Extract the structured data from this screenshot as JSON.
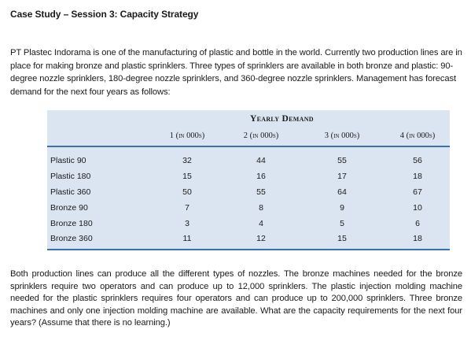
{
  "title": "Case Study – Session 3: Capacity Strategy",
  "intro": "PT Plastec Indorama is one of the manufacturing of plastic and bottle in the world. Currently two production lines are in place for making bronze and plastic sprinklers. Three types of sprinklers are available in both bronze and plastic: 90-degree nozzle sprinklers, 180-degree nozzle sprinklers, and 360-degree nozzle sprinklers. Management has forecast demand for the next four years as follows:",
  "table": {
    "span_header": "Yearly Demand",
    "columns": [
      "1 (in 000s)",
      "2 (in 000s)",
      "3 (in 000s)",
      "4 (in 000s)"
    ],
    "rows": [
      {
        "label": "Plastic 90",
        "values": [
          "32",
          "44",
          "55",
          "56"
        ]
      },
      {
        "label": "Plastic 180",
        "values": [
          "15",
          "16",
          "17",
          "18"
        ]
      },
      {
        "label": "Plastic 360",
        "values": [
          "50",
          "55",
          "64",
          "67"
        ]
      },
      {
        "label": "Bronze 90",
        "values": [
          "7",
          "8",
          "9",
          "10"
        ]
      },
      {
        "label": "Bronze 180",
        "values": [
          "3",
          "4",
          "5",
          "6"
        ]
      },
      {
        "label": "Bronze 360",
        "values": [
          "11",
          "12",
          "15",
          "18"
        ]
      }
    ]
  },
  "question": "Both production lines can produce all the different types of nozzles. The bronze machines needed for the bronze sprinklers require two operators and can produce up to 12,000 sprinklers. The plastic injection molding machine needed for the plastic sprinklers requires four operators and can produce up to 200,000 sprinklers. Three bronze machines and only one injection molding machine are available. What are the capacity requirements for the next four years? (Assume that there is no learning.)"
}
